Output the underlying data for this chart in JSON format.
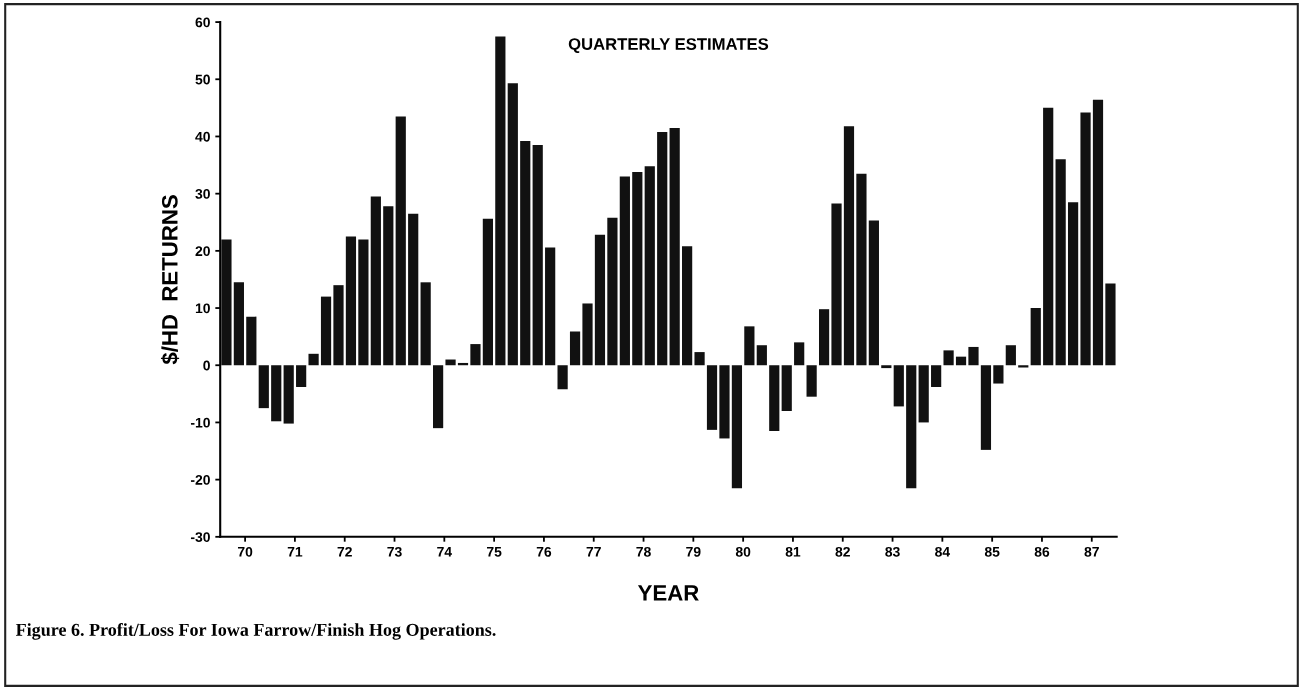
{
  "chart_data": {
    "type": "bar",
    "title": "QUARTERLY ESTIMATES",
    "xlabel": "YEAR",
    "ylabel": "$/HD  RETURNS",
    "color": "#111111",
    "x": [
      70.125,
      70.375,
      70.625,
      70.875,
      71.125,
      71.375,
      71.625,
      71.875,
      72.125,
      72.375,
      72.625,
      72.875,
      73.125,
      73.375,
      73.625,
      73.875,
      74.125,
      74.375,
      74.625,
      74.875,
      75.125,
      75.375,
      75.625,
      75.875,
      76.125,
      76.375,
      76.625,
      76.875,
      77.125,
      77.375,
      77.625,
      77.875,
      78.125,
      78.375,
      78.625,
      78.875,
      79.125,
      79.375,
      79.625,
      79.875,
      80.125,
      80.375,
      80.625,
      80.875,
      81.125,
      81.375,
      81.625,
      81.875,
      82.125,
      82.375,
      82.625,
      82.875,
      83.125,
      83.375,
      83.625,
      83.875,
      84.125,
      84.375,
      84.625,
      84.875,
      85.125,
      85.375,
      85.625,
      85.875,
      86.125,
      86.375,
      86.625,
      86.875,
      87.125,
      87.375,
      87.625,
      87.875
    ],
    "values": [
      22,
      14.5,
      8.5,
      -7.5,
      -9.8,
      -10.2,
      -3.8,
      2,
      12,
      14,
      22.5,
      22,
      29.5,
      27.8,
      43.5,
      26.5,
      14.5,
      -11,
      1,
      0.4,
      3.7,
      25.6,
      57.5,
      49.3,
      39.2,
      38.5,
      20.6,
      -4.2,
      5.9,
      10.8,
      22.8,
      25.8,
      33,
      33.8,
      34.8,
      40.8,
      41.5,
      20.8,
      2.3,
      -11.3,
      -12.8,
      -21.5,
      6.8,
      3.5,
      -11.5,
      -8,
      4,
      -5.5,
      9.8,
      28.3,
      41.8,
      33.5,
      25.3,
      -0.5,
      -7.2,
      -21.5,
      -10,
      -3.8,
      2.6,
      1.5,
      3.2,
      -14.8,
      -3.2,
      3.5,
      -0.4,
      10,
      45,
      36,
      28.5,
      44.2,
      46.4,
      14.3
    ],
    "xlim": [
      70,
      88
    ],
    "xticks": [
      {
        "value": 70.5,
        "label": "70"
      },
      {
        "value": 71.5,
        "label": "71"
      },
      {
        "value": 72.5,
        "label": "72"
      },
      {
        "value": 73.5,
        "label": "73"
      },
      {
        "value": 74.5,
        "label": "74"
      },
      {
        "value": 75.5,
        "label": "75"
      },
      {
        "value": 76.5,
        "label": "76"
      },
      {
        "value": 77.5,
        "label": "77"
      },
      {
        "value": 78.5,
        "label": "78"
      },
      {
        "value": 79.5,
        "label": "79"
      },
      {
        "value": 80.5,
        "label": "80"
      },
      {
        "value": 81.5,
        "label": "81"
      },
      {
        "value": 82.5,
        "label": "82"
      },
      {
        "value": 83.5,
        "label": "83"
      },
      {
        "value": 84.5,
        "label": "84"
      },
      {
        "value": 85.5,
        "label": "85"
      },
      {
        "value": 86.5,
        "label": "86"
      },
      {
        "value": 87.5,
        "label": "87"
      }
    ],
    "ylim": [
      -30,
      60
    ],
    "yticks": [
      -30,
      -20,
      -10,
      0,
      10,
      20,
      30,
      40,
      50,
      60
    ],
    "grid": false,
    "annotations": [
      "Figure 6. Profit/Loss For Iowa Farrow/Finish Hog Operations."
    ]
  }
}
